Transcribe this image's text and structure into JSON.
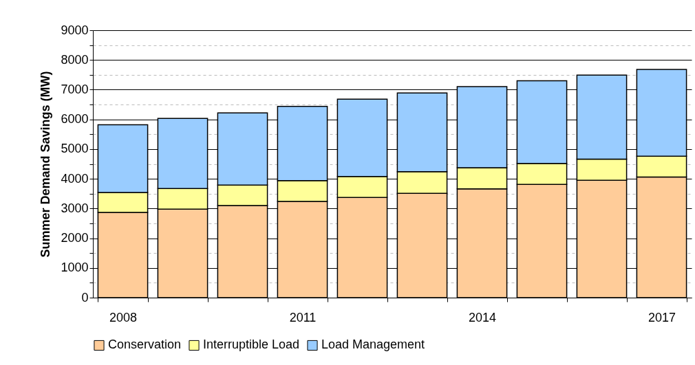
{
  "chart_data": {
    "type": "bar",
    "stacked": true,
    "ylabel": "Summer Demand Savings (MW)",
    "categories": [
      "2008",
      null,
      null,
      "2011",
      null,
      null,
      "2014",
      null,
      null,
      "2017"
    ],
    "series": [
      {
        "name": "Conservation",
        "color": "#ffcc99",
        "values": [
          2870,
          2980,
          3100,
          3240,
          3370,
          3510,
          3660,
          3810,
          3950,
          4060
        ]
      },
      {
        "name": "Interruptible Load",
        "color": "#ffff99",
        "values": [
          670,
          690,
          690,
          700,
          710,
          730,
          710,
          710,
          710,
          700
        ]
      },
      {
        "name": "Load Management",
        "color": "#99ccff",
        "values": [
          2280,
          2360,
          2430,
          2500,
          2600,
          2650,
          2730,
          2780,
          2830,
          2920
        ]
      }
    ],
    "ylim": [
      0,
      9000
    ],
    "yticks": [
      0,
      {
        "value": 500,
        "label": null
      },
      1000,
      {
        "value": 1500,
        "label": null
      },
      2000,
      {
        "value": 2500,
        "label": null
      },
      3000,
      {
        "value": 3500,
        "label": null
      },
      4000,
      {
        "value": 4500,
        "label": null
      },
      5000,
      {
        "value": 5500,
        "label": null
      },
      6000,
      {
        "value": 6500,
        "label": null
      },
      7000,
      {
        "value": 7500,
        "label": null
      },
      8000,
      {
        "value": 8500,
        "label": null
      },
      9000
    ],
    "grid": true,
    "legend": "bottom"
  }
}
